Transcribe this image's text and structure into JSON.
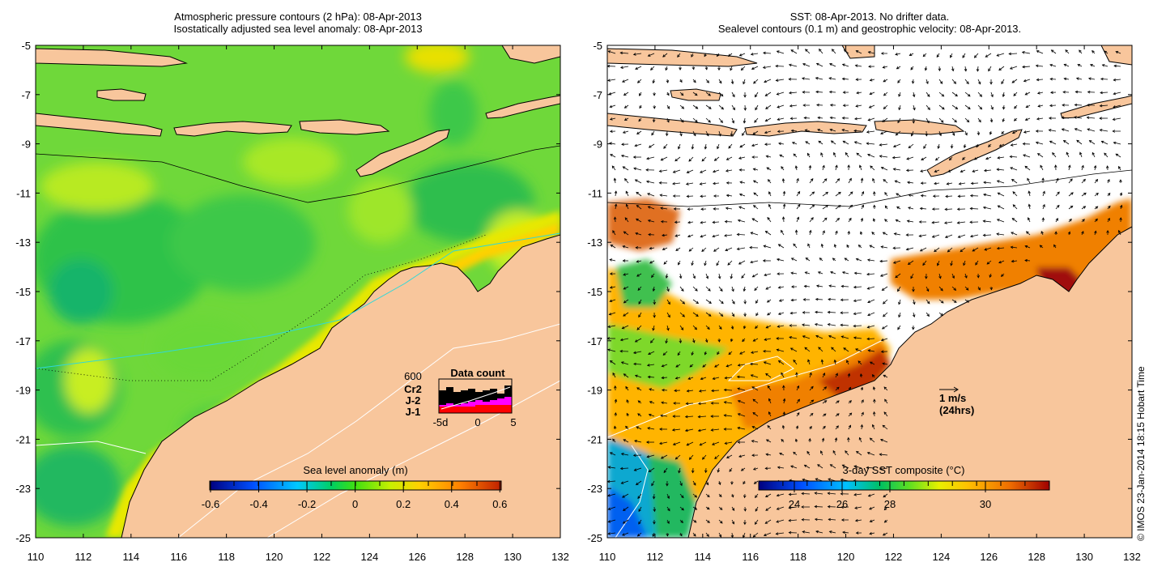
{
  "left_panel": {
    "title_line1": "Atmospheric pressure contours (2 hPa): 08-Apr-2013",
    "title_line2": "Isostatically adjusted sea level anomaly: 08-Apr-2013",
    "colorbar_label": "Sea level anomaly (m)",
    "colorbar_ticks": [
      "-0.6",
      "-0.4",
      "-0.2",
      "0",
      "0.2",
      "0.4",
      "0.6"
    ],
    "inset": {
      "title": "Data count",
      "max_label": "600",
      "legend": [
        {
          "name": "Cr2",
          "color": "#000000"
        },
        {
          "name": "J-2",
          "color": "#ff00ff"
        },
        {
          "name": "J-1",
          "color": "#ff0000"
        }
      ],
      "x_ticks": [
        "-5d",
        "0",
        "5"
      ]
    }
  },
  "right_panel": {
    "title_line1": "SST: 08-Apr-2013. No drifter data.",
    "title_line2": "Sealevel contours (0.1 m) and geostrophic velocity: 08-Apr-2013.",
    "colorbar_label": "3-day SST composite (°C)",
    "colorbar_ticks": [
      "24",
      "26",
      "28",
      "30"
    ],
    "velocity_scale": {
      "line1": "1 m/s",
      "line2": "(24hrs)"
    }
  },
  "axes": {
    "lat_ticks": [
      "-5",
      "-7",
      "-9",
      "-11",
      "-13",
      "-15",
      "-17",
      "-19",
      "-21",
      "-23",
      "-25"
    ],
    "lon_ticks": [
      "110",
      "112",
      "114",
      "116",
      "118",
      "120",
      "122",
      "124",
      "126",
      "128",
      "130",
      "132"
    ]
  },
  "copyright": "© IMOS 23-Jan-2014 18:15 Hobart Time",
  "colors": {
    "land": "#f8c69c",
    "sla_colormap": [
      "#00007f",
      "#0050ff",
      "#00c8ff",
      "#00d060",
      "#40e010",
      "#c8f000",
      "#ffd000",
      "#ff8000",
      "#c02000"
    ],
    "sst_colormap": [
      "#00007f",
      "#0050ff",
      "#00c0ff",
      "#00c060",
      "#60e020",
      "#e8f000",
      "#ffc000",
      "#f07000",
      "#a00000"
    ]
  }
}
